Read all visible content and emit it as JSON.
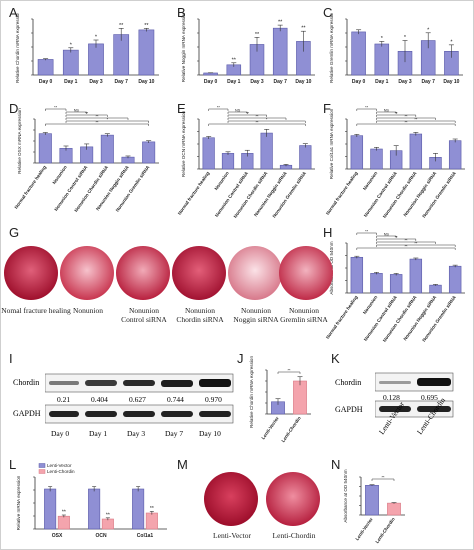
{
  "panel_letters": [
    "A",
    "B",
    "C",
    "D",
    "E",
    "F",
    "G",
    "H",
    "I",
    "J",
    "K",
    "L",
    "M",
    "N"
  ],
  "colors": {
    "bar": "#8f8fd4",
    "bar_edge": "#5a5aa8",
    "pink": "#f4a4ad",
    "pink_edge": "#d97a85",
    "axis": "#333333"
  },
  "chart_data": [
    {
      "id": "A",
      "type": "bar",
      "ylabel": "Relative Chordin mRNA expression",
      "categories": [
        "Day 0",
        "Day 1",
        "Day 3",
        "Day 7",
        "Day 10"
      ],
      "values": [
        1.0,
        1.6,
        2.0,
        2.6,
        2.9
      ],
      "errors": [
        0.05,
        0.15,
        0.25,
        0.4,
        0.1
      ],
      "sig": [
        "",
        "*",
        "*",
        "**",
        "**"
      ],
      "ylim": [
        0,
        3.6
      ]
    },
    {
      "id": "B",
      "type": "bar",
      "ylabel": "Relative Noggin mRNA expression",
      "categories": [
        "Day 0",
        "Day 1",
        "Day 3",
        "Day 7",
        "Day 10"
      ],
      "values": [
        0.2,
        1.0,
        3.0,
        4.6,
        3.3
      ],
      "errors": [
        0.02,
        0.2,
        0.7,
        0.3,
        1.0
      ],
      "sig": [
        "",
        "**",
        "**",
        "**",
        "**"
      ],
      "ylim": [
        0,
        5.5
      ]
    },
    {
      "id": "C",
      "type": "bar",
      "ylabel": "Relative Gremlin mRNA expression",
      "categories": [
        "Day 0",
        "Day 1",
        "Day 3",
        "Day 7",
        "Day 10"
      ],
      "values": [
        1.0,
        0.72,
        0.55,
        0.8,
        0.55
      ],
      "errors": [
        0.05,
        0.06,
        0.25,
        0.18,
        0.15
      ],
      "sig": [
        "",
        "*",
        "*",
        "*",
        "*"
      ],
      "ylim": [
        0,
        1.3
      ]
    },
    {
      "id": "D",
      "type": "bar",
      "ylabel": "Relative OSX mRNA expression",
      "categories": [
        "Normal fracture healing",
        "Nonunion",
        "Nonunion Control siRNA",
        "Nonunion Chordin siRNA",
        "Nonunion Noggin siRNA",
        "Nonunion Gremlin siRNA"
      ],
      "values": [
        1.0,
        0.5,
        0.55,
        0.95,
        0.2,
        0.72
      ],
      "errors": [
        0.04,
        0.08,
        0.1,
        0.05,
        0.04,
        0.04
      ],
      "brackets": [
        [
          "**",
          0,
          1
        ],
        [
          "NS",
          1,
          2
        ],
        [
          "**",
          1,
          3
        ],
        [
          "**",
          1,
          4
        ],
        [
          "*",
          1,
          5
        ],
        [
          "**",
          0,
          5
        ]
      ],
      "ylim": [
        0,
        1.5
      ]
    },
    {
      "id": "E",
      "type": "bar",
      "ylabel": "Relative OCN mRNA expression",
      "categories": [
        "Normal fracture healing",
        "Nonunion",
        "Nonunion Control siRNA",
        "Nonunion Chordin siRNA",
        "Nonunion Noggin siRNA",
        "Nonunion Gremlin siRNA"
      ],
      "values": [
        1.0,
        0.5,
        0.5,
        1.15,
        0.12,
        0.75
      ],
      "errors": [
        0.04,
        0.05,
        0.1,
        0.12,
        0.03,
        0.06
      ],
      "brackets": [
        [
          "**",
          0,
          1
        ],
        [
          "NS",
          1,
          2
        ],
        [
          "**",
          1,
          3
        ],
        [
          "**",
          1,
          4
        ],
        [
          "*",
          1,
          5
        ],
        [
          "**",
          0,
          5
        ]
      ],
      "ylim": [
        0,
        1.6
      ]
    },
    {
      "id": "F",
      "type": "bar",
      "ylabel": "Relative Col1a1 mRNA expression",
      "categories": [
        "Normal fracture healing",
        "Nonunion",
        "Nonunion Control siRNA",
        "Nonunion Chordin siRNA",
        "Nonunion Noggin siRNA",
        "Nonunion Gremlin siRNA"
      ],
      "values": [
        1.0,
        0.6,
        0.55,
        1.05,
        0.35,
        0.85
      ],
      "errors": [
        0.04,
        0.05,
        0.15,
        0.05,
        0.12,
        0.05
      ],
      "brackets": [
        [
          "**",
          0,
          1
        ],
        [
          "NS",
          1,
          2
        ],
        [
          "**",
          1,
          3
        ],
        [
          "**",
          1,
          4
        ],
        [
          "**",
          1,
          5
        ],
        [
          "**",
          0,
          5
        ]
      ],
      "ylim": [
        0,
        1.5
      ]
    },
    {
      "id": "H",
      "type": "bar",
      "ylabel": "Absorbance at OD 540nm",
      "categories": [
        "Normal fracture healing",
        "Nonunion",
        "Nonunion Control siRNA",
        "Nonunion Chordin siRNA",
        "Nonunion Noggin siRNA",
        "Nonunion Gremlin siRNA"
      ],
      "values": [
        1.0,
        0.55,
        0.52,
        0.95,
        0.22,
        0.75
      ],
      "errors": [
        0.03,
        0.03,
        0.03,
        0.03,
        0.02,
        0.03
      ],
      "brackets": [
        [
          "**",
          0,
          1
        ],
        [
          "NS",
          1,
          2
        ],
        [
          "**",
          1,
          3
        ],
        [
          "**",
          1,
          4
        ],
        [
          "**",
          1,
          5
        ],
        [
          "**",
          0,
          5
        ]
      ],
      "ylim": [
        0,
        1.4
      ]
    },
    {
      "id": "J",
      "type": "bar",
      "ylabel": "Relative Chordin mRNA expression",
      "categories": [
        "Lenti-Vector",
        "Lenti-Chordin"
      ],
      "values": [
        1.0,
        2.7
      ],
      "errors": [
        0.25,
        0.35
      ],
      "fills": [
        "bar",
        "pink"
      ],
      "brackets": [
        [
          "**",
          0,
          1
        ]
      ],
      "ylim": [
        0,
        3.6
      ]
    },
    {
      "id": "L",
      "type": "grouped-bar",
      "ylabel": "Relative mRNA expression",
      "categories": [
        "OSX",
        "OCN",
        "Col1a1"
      ],
      "series": [
        {
          "name": "Lenti-Vector",
          "values": [
            1.0,
            1.0,
            1.0
          ],
          "errors": [
            0.06,
            0.06,
            0.06
          ]
        },
        {
          "name": "Lenti-Chordin",
          "values": [
            0.32,
            0.25,
            0.4
          ],
          "errors": [
            0.03,
            0.03,
            0.04
          ]
        }
      ],
      "sig": [
        "**",
        "**",
        "**"
      ],
      "ylim": [
        0,
        1.3
      ]
    },
    {
      "id": "N",
      "type": "bar",
      "ylabel": "Absorbance at OD 540nm",
      "categories": [
        "Lenti-Vector",
        "Lenti-Chordin"
      ],
      "values": [
        2.5,
        1.0
      ],
      "errors": [
        0.05,
        0.05
      ],
      "fills": [
        "bar",
        "pink"
      ],
      "brackets": [
        [
          "**",
          0,
          1
        ]
      ],
      "ylim": [
        0,
        3.2
      ]
    }
  ],
  "panel_G": {
    "captions": [
      "Nomal fracture healing",
      "Nonunion",
      "Nonunion\nControl siRNA",
      "Nonunion\nChordin siRNA",
      "Nonunion\nNoggin siRNA",
      "Nonunion\nGremlin siRNA"
    ],
    "dish_colors": [
      "#c41f3d",
      "#d9506a",
      "#cf3a55",
      "#c52440",
      "#e79aa8",
      "#d64a62"
    ]
  },
  "panel_I": {
    "row_labels": [
      "Chordin",
      "GAPDH"
    ],
    "values": [
      "0.21",
      "0.404",
      "0.627",
      "0.744",
      "0.970"
    ],
    "lanes": [
      "Day 0",
      "Day 1",
      "Day 3",
      "Day 7",
      "Day 10"
    ]
  },
  "panel_K": {
    "row_labels": [
      "Chordin",
      "GAPDH"
    ],
    "values": [
      "0.128",
      "0.695"
    ],
    "lanes": [
      "Lenti-Vector",
      "Lenti-Chordin"
    ]
  },
  "panel_M": {
    "captions": [
      "Lenti-Vector",
      "Lenti-Chordin"
    ],
    "dish_colors": [
      "#c21b3a",
      "#cc3550"
    ]
  }
}
